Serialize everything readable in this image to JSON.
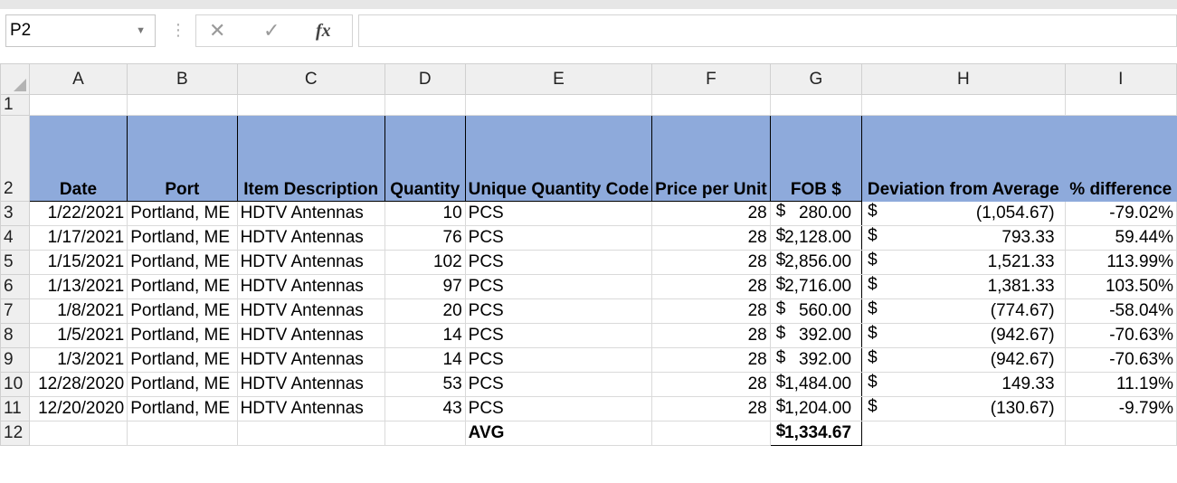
{
  "namebox": {
    "value": "P2"
  },
  "formula_bar": {
    "fx_label": "fx",
    "value": ""
  },
  "columns": [
    "A",
    "B",
    "C",
    "D",
    "E",
    "F",
    "G",
    "H",
    "I"
  ],
  "header_row": {
    "row_num": "2",
    "date": "Date",
    "port": "Port",
    "item": "Item Description",
    "quantity": "Quantity",
    "uqc": "Unique Quantity Code",
    "price": "Price per Unit",
    "fob": "FOB $",
    "deviation": "Deviation from Average",
    "pct": "% difference"
  },
  "rows": [
    {
      "row_num": "3",
      "date": "1/22/2021",
      "port": "Portland, ME",
      "item": "HDTV Antennas",
      "quantity": "10",
      "uqc": "PCS",
      "price": "28",
      "fob_sym": "$",
      "fob": "280.00",
      "dev_sym": "$",
      "dev": "(1,054.67)",
      "pct": "-79.02%"
    },
    {
      "row_num": "4",
      "date": "1/17/2021",
      "port": "Portland, ME",
      "item": "HDTV Antennas",
      "quantity": "76",
      "uqc": "PCS",
      "price": "28",
      "fob_sym": "$",
      "fob": "2,128.00",
      "dev_sym": "$",
      "dev": "793.33",
      "pct": "59.44%"
    },
    {
      "row_num": "5",
      "date": "1/15/2021",
      "port": "Portland, ME",
      "item": "HDTV Antennas",
      "quantity": "102",
      "uqc": "PCS",
      "price": "28",
      "fob_sym": "$",
      "fob": "2,856.00",
      "dev_sym": "$",
      "dev": "1,521.33",
      "pct": "113.99%"
    },
    {
      "row_num": "6",
      "date": "1/13/2021",
      "port": "Portland, ME",
      "item": "HDTV Antennas",
      "quantity": "97",
      "uqc": "PCS",
      "price": "28",
      "fob_sym": "$",
      "fob": "2,716.00",
      "dev_sym": "$",
      "dev": "1,381.33",
      "pct": "103.50%"
    },
    {
      "row_num": "7",
      "date": "1/8/2021",
      "port": "Portland, ME",
      "item": "HDTV Antennas",
      "quantity": "20",
      "uqc": "PCS",
      "price": "28",
      "fob_sym": "$",
      "fob": "560.00",
      "dev_sym": "$",
      "dev": "(774.67)",
      "pct": "-58.04%"
    },
    {
      "row_num": "8",
      "date": "1/5/2021",
      "port": "Portland, ME",
      "item": "HDTV Antennas",
      "quantity": "14",
      "uqc": "PCS",
      "price": "28",
      "fob_sym": "$",
      "fob": "392.00",
      "dev_sym": "$",
      "dev": "(942.67)",
      "pct": "-70.63%"
    },
    {
      "row_num": "9",
      "date": "1/3/2021",
      "port": "Portland, ME",
      "item": "HDTV Antennas",
      "quantity": "14",
      "uqc": "PCS",
      "price": "28",
      "fob_sym": "$",
      "fob": "392.00",
      "dev_sym": "$",
      "dev": "(942.67)",
      "pct": "-70.63%"
    },
    {
      "row_num": "10",
      "date": "12/28/2020",
      "port": "Portland, ME",
      "item": "HDTV Antennas",
      "quantity": "53",
      "uqc": "PCS",
      "price": "28",
      "fob_sym": "$",
      "fob": "1,484.00",
      "dev_sym": "$",
      "dev": "149.33",
      "pct": "11.19%"
    },
    {
      "row_num": "11",
      "date": "12/20/2020",
      "port": "Portland, ME",
      "item": "HDTV Antennas",
      "quantity": "43",
      "uqc": "PCS",
      "price": "28",
      "fob_sym": "$",
      "fob": "1,204.00",
      "dev_sym": "$",
      "dev": "(130.67)",
      "pct": "-9.79%"
    }
  ],
  "avg_row": {
    "row_num": "12",
    "label": "AVG",
    "sym": "$",
    "value": "1,334.67"
  },
  "row1_num": "1"
}
